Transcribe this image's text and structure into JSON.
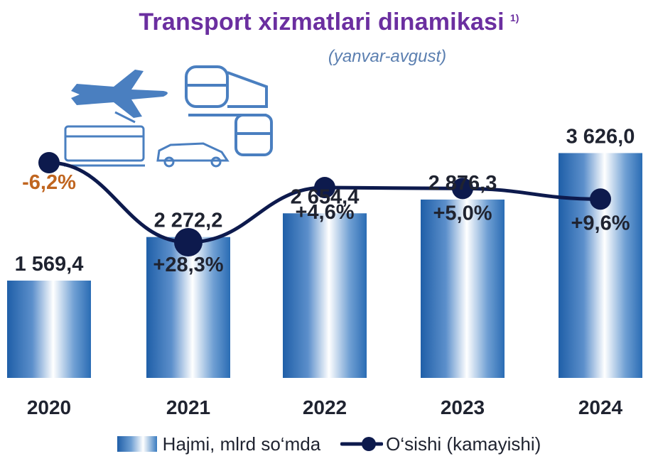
{
  "header": {
    "title": "Transport xizmatlari dinamikasi",
    "footnote": "1)",
    "subtitle": "(yanvar-avgust)"
  },
  "legend": {
    "volume": "Hajmi, mlrd so‘mda",
    "growth": "O‘sishi (kamayishi)"
  },
  "icons": [
    "airplane-icon",
    "train-icon",
    "tram-icon",
    "car-icon",
    "bus-icon"
  ],
  "colors": {
    "title": "#6b2fa0",
    "bar_dark": "#1f5fa8",
    "line": "#0d1a4d",
    "negative_label": "#c0651f",
    "text": "#1f2330"
  },
  "chart_data": {
    "type": "bar",
    "categories": [
      "2020",
      "2021",
      "2022",
      "2023",
      "2024"
    ],
    "series": [
      {
        "name": "Hajmi, mlrd so‘mda",
        "type": "bar",
        "values": [
          1569.4,
          2272.2,
          2654.4,
          2876.3,
          3626.0
        ],
        "labels": [
          "1 569,4",
          "2 272,2",
          "2 654,4",
          "2 876,3",
          "3 626,0"
        ]
      },
      {
        "name": "O‘sishi (kamayishi)",
        "type": "line",
        "values": [
          -6.2,
          28.3,
          4.6,
          5.0,
          9.6
        ],
        "labels": [
          "-6,2%",
          "+28,3%",
          "+4,6%",
          "+5,0%",
          "+9,6%"
        ]
      }
    ],
    "title": "Transport xizmatlari dinamikasi",
    "subtitle": "(yanvar-avgust)",
    "legend_position": "bottom",
    "grid": false
  }
}
